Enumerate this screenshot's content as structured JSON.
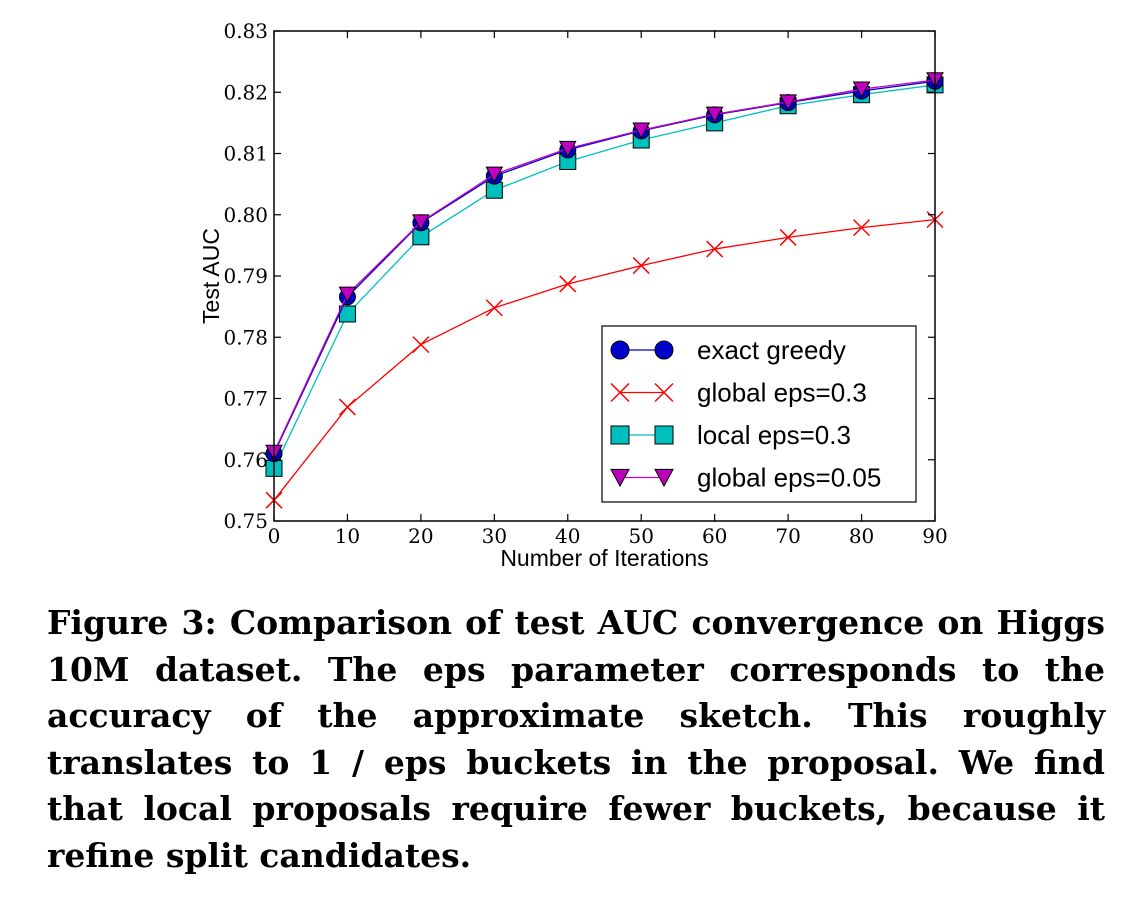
{
  "chart_data": {
    "type": "line",
    "title": "",
    "xlabel": "Number of Iterations",
    "ylabel": "Test AUC",
    "xlim": [
      0,
      90
    ],
    "ylim": [
      0.75,
      0.83
    ],
    "x_ticks": [
      "0",
      "10",
      "20",
      "30",
      "40",
      "50",
      "60",
      "70",
      "80",
      "90"
    ],
    "y_ticks": [
      "0.75",
      "0.76",
      "0.77",
      "0.78",
      "0.79",
      "0.80",
      "0.81",
      "0.82",
      "0.83"
    ],
    "grid": false,
    "legend_position": "bottom-right",
    "x": [
      0,
      10,
      20,
      30,
      40,
      50,
      60,
      70,
      80,
      90
    ],
    "series": [
      {
        "name": "exact greedy",
        "color": "#0000cc",
        "marker": "circle",
        "values": [
          0.761,
          0.7866,
          0.7987,
          0.8063,
          0.8106,
          0.8137,
          0.8163,
          0.8183,
          0.8202,
          0.8218
        ]
      },
      {
        "name": "global eps=0.3",
        "color": "#ff0000",
        "marker": "x",
        "values": [
          0.7534,
          0.7686,
          0.7788,
          0.7848,
          0.7887,
          0.7917,
          0.7944,
          0.7963,
          0.7979,
          0.7992
        ]
      },
      {
        "name": "local eps=0.3",
        "color": "#00bfbf",
        "marker": "square",
        "values": [
          0.7586,
          0.7838,
          0.7964,
          0.804,
          0.8087,
          0.8122,
          0.815,
          0.8178,
          0.8196,
          0.8212
        ]
      },
      {
        "name": "global eps=0.05",
        "color": "#bf00bf",
        "marker": "triangle-down",
        "values": [
          0.7612,
          0.787,
          0.7988,
          0.8066,
          0.8108,
          0.8138,
          0.8164,
          0.8184,
          0.8205,
          0.822
        ]
      }
    ]
  },
  "caption": "Figure 3: Comparison of test AUC convergence on Higgs 10M dataset. The eps parameter corresponds to the accuracy of the approximate sketch. This roughly translates to 1 / eps buckets in the proposal. We find that local proposals require fewer buckets, because it refine split candidates."
}
